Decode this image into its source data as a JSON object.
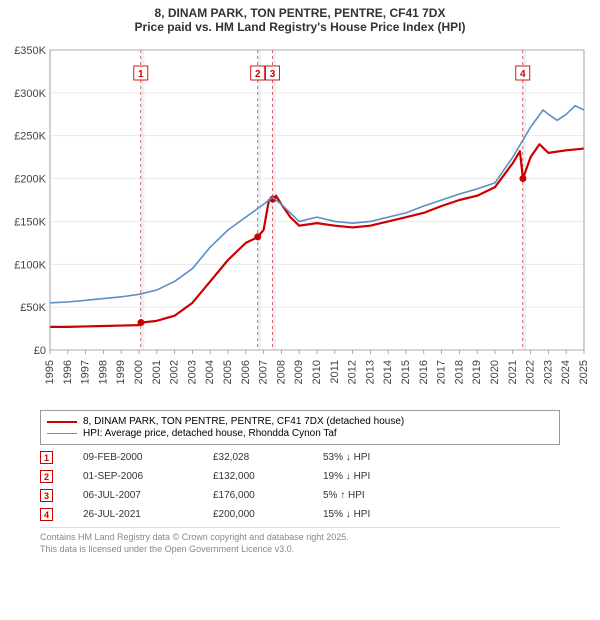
{
  "title": {
    "line1": "8, DINAM PARK, TON PENTRE, PENTRE, CF41 7DX",
    "line2": "Price paid vs. HM Land Registry's House Price Index (HPI)"
  },
  "chart": {
    "type": "line",
    "plot_bg": "#ffffff",
    "shaded_bg": "#eaf1f9",
    "grid_color": "#e0e0e0",
    "ylim": [
      0,
      350000
    ],
    "ytick_step": 50000,
    "ytick_labels": [
      "£0",
      "£50K",
      "£100K",
      "£150K",
      "£200K",
      "£250K",
      "£300K",
      "£350K"
    ],
    "xlim": [
      1995,
      2025
    ],
    "xticks": [
      1995,
      1996,
      1997,
      1998,
      1999,
      2000,
      2001,
      2002,
      2003,
      2004,
      2005,
      2006,
      2007,
      2008,
      2009,
      2010,
      2011,
      2012,
      2013,
      2014,
      2015,
      2016,
      2017,
      2018,
      2019,
      2020,
      2021,
      2022,
      2023,
      2024,
      2025
    ],
    "shaded_ranges": [
      [
        2000.1,
        2000.3
      ],
      [
        2006.67,
        2006.85
      ],
      [
        2007.5,
        2007.7
      ],
      [
        2021.55,
        2021.75
      ]
    ],
    "marker_lines": [
      {
        "x": 2000.1,
        "label": "1"
      },
      {
        "x": 2006.67,
        "label": "2"
      },
      {
        "x": 2007.5,
        "label": "3"
      },
      {
        "x": 2021.56,
        "label": "4"
      }
    ],
    "series": [
      {
        "name": "property",
        "color": "#cc0000",
        "width": 2.2,
        "points": [
          [
            1995,
            27000
          ],
          [
            1996,
            27000
          ],
          [
            1997,
            27500
          ],
          [
            1998,
            28000
          ],
          [
            1999,
            28500
          ],
          [
            2000.0,
            29000
          ],
          [
            2000.11,
            32028
          ],
          [
            2001,
            34000
          ],
          [
            2002,
            40000
          ],
          [
            2003,
            55000
          ],
          [
            2004,
            80000
          ],
          [
            2005,
            105000
          ],
          [
            2006,
            125000
          ],
          [
            2006.5,
            130000
          ],
          [
            2006.67,
            132000
          ],
          [
            2007.0,
            140000
          ],
          [
            2007.3,
            175000
          ],
          [
            2007.52,
            176000
          ],
          [
            2007.7,
            180000
          ],
          [
            2008,
            170000
          ],
          [
            2008.5,
            155000
          ],
          [
            2009,
            145000
          ],
          [
            2010,
            148000
          ],
          [
            2011,
            145000
          ],
          [
            2012,
            143000
          ],
          [
            2013,
            145000
          ],
          [
            2014,
            150000
          ],
          [
            2015,
            155000
          ],
          [
            2016,
            160000
          ],
          [
            2017,
            168000
          ],
          [
            2018,
            175000
          ],
          [
            2019,
            180000
          ],
          [
            2020,
            190000
          ],
          [
            2021,
            218000
          ],
          [
            2021.4,
            232000
          ],
          [
            2021.57,
            200000
          ],
          [
            2022,
            225000
          ],
          [
            2022.5,
            240000
          ],
          [
            2023,
            230000
          ],
          [
            2024,
            233000
          ],
          [
            2025,
            235000
          ]
        ],
        "dots": [
          [
            2000.11,
            32028
          ],
          [
            2006.67,
            132000
          ],
          [
            2007.52,
            176000
          ],
          [
            2021.57,
            200000
          ]
        ]
      },
      {
        "name": "hpi",
        "color": "#5b8fc7",
        "width": 1.6,
        "points": [
          [
            1995,
            55000
          ],
          [
            1996,
            56000
          ],
          [
            1997,
            58000
          ],
          [
            1998,
            60000
          ],
          [
            1999,
            62000
          ],
          [
            2000,
            65000
          ],
          [
            2001,
            70000
          ],
          [
            2002,
            80000
          ],
          [
            2003,
            95000
          ],
          [
            2004,
            120000
          ],
          [
            2005,
            140000
          ],
          [
            2006,
            155000
          ],
          [
            2007,
            170000
          ],
          [
            2007.5,
            178000
          ],
          [
            2008,
            170000
          ],
          [
            2009,
            150000
          ],
          [
            2010,
            155000
          ],
          [
            2011,
            150000
          ],
          [
            2012,
            148000
          ],
          [
            2013,
            150000
          ],
          [
            2014,
            155000
          ],
          [
            2015,
            160000
          ],
          [
            2016,
            168000
          ],
          [
            2017,
            175000
          ],
          [
            2018,
            182000
          ],
          [
            2019,
            188000
          ],
          [
            2020,
            195000
          ],
          [
            2021,
            225000
          ],
          [
            2022,
            260000
          ],
          [
            2022.7,
            280000
          ],
          [
            2023,
            275000
          ],
          [
            2023.5,
            268000
          ],
          [
            2024,
            275000
          ],
          [
            2024.5,
            285000
          ],
          [
            2025,
            280000
          ]
        ]
      }
    ]
  },
  "legend": {
    "items": [
      {
        "color": "#cc0000",
        "width": 2.2,
        "label": "8, DINAM PARK, TON PENTRE, PENTRE, CF41 7DX (detached house)"
      },
      {
        "color": "#5b8fc7",
        "width": 1.6,
        "label": "HPI: Average price, detached house, Rhondda Cynon Taf"
      }
    ]
  },
  "events": [
    {
      "n": "1",
      "date": "09-FEB-2000",
      "price": "£32,028",
      "delta": "53% ↓ HPI"
    },
    {
      "n": "2",
      "date": "01-SEP-2006",
      "price": "£132,000",
      "delta": "19% ↓ HPI"
    },
    {
      "n": "3",
      "date": "06-JUL-2007",
      "price": "£176,000",
      "delta": "5% ↑ HPI"
    },
    {
      "n": "4",
      "date": "26-JUL-2021",
      "price": "£200,000",
      "delta": "15% ↓ HPI"
    }
  ],
  "footer": {
    "line1": "Contains HM Land Registry data © Crown copyright and database right 2025.",
    "line2": "This data is licensed under the Open Government Licence v3.0."
  }
}
